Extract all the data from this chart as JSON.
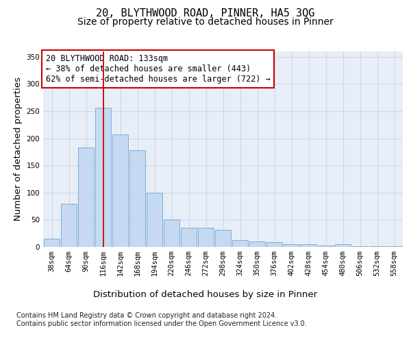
{
  "title_line1": "20, BLYTHWOOD ROAD, PINNER, HA5 3QG",
  "title_line2": "Size of property relative to detached houses in Pinner",
  "xlabel": "Distribution of detached houses by size in Pinner",
  "ylabel": "Number of detached properties",
  "categories": [
    "38sqm",
    "64sqm",
    "90sqm",
    "116sqm",
    "142sqm",
    "168sqm",
    "194sqm",
    "220sqm",
    "246sqm",
    "272sqm",
    "298sqm",
    "324sqm",
    "350sqm",
    "376sqm",
    "402sqm",
    "428sqm",
    "454sqm",
    "480sqm",
    "506sqm",
    "532sqm",
    "558sqm"
  ],
  "values": [
    15,
    79,
    183,
    257,
    207,
    178,
    100,
    50,
    36,
    35,
    32,
    13,
    10,
    9,
    5,
    5,
    2,
    5,
    1,
    1,
    1
  ],
  "bar_color": "#c5d9f1",
  "bar_edge_color": "#7bafd4",
  "grid_color": "#d0d8e4",
  "background_color": "#e8eef8",
  "vline_x_index": 3,
  "vline_color": "#cc0000",
  "annotation_text": "20 BLYTHWOOD ROAD: 133sqm\n← 38% of detached houses are smaller (443)\n62% of semi-detached houses are larger (722) →",
  "annotation_box_color": "white",
  "annotation_box_edge": "#cc0000",
  "ylim": [
    0,
    360
  ],
  "yticks": [
    0,
    50,
    100,
    150,
    200,
    250,
    300,
    350
  ],
  "footer_text": "Contains HM Land Registry data © Crown copyright and database right 2024.\nContains public sector information licensed under the Open Government Licence v3.0.",
  "title_fontsize": 11,
  "subtitle_fontsize": 10,
  "axis_label_fontsize": 9.5,
  "tick_fontsize": 7.5,
  "annotation_fontsize": 8.5,
  "footer_fontsize": 7
}
